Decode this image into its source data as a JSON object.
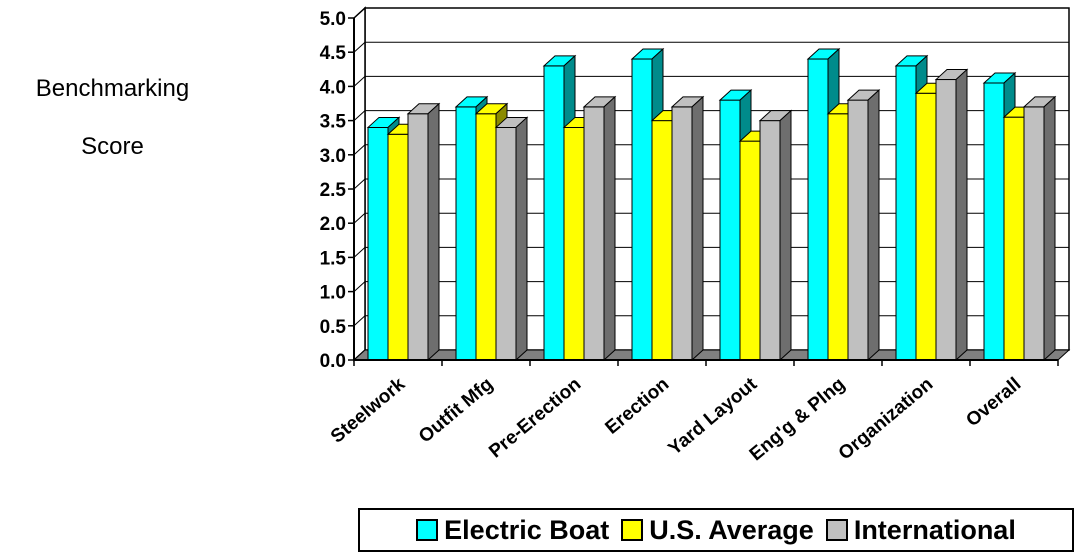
{
  "ylabel_lines": [
    "Benchmarking",
    "Score"
  ],
  "chart_data": {
    "type": "bar",
    "title": "",
    "xlabel": "",
    "ylabel": "Benchmarking Score",
    "ylim": [
      0,
      5
    ],
    "yticks": [
      "0.0",
      "0.5",
      "1.0",
      "1.5",
      "2.0",
      "2.5",
      "3.0",
      "3.5",
      "4.0",
      "4.5",
      "5.0"
    ],
    "grid": true,
    "legend_position": "bottom",
    "categories": [
      "Steelwork",
      "Outfit Mfg",
      "Pre-Erection",
      "Erection",
      "Yard Layout",
      "Eng'g & Plng",
      "Organization",
      "Overall"
    ],
    "series": [
      {
        "name": "Electric Boat",
        "color": "#00ffff",
        "side_color": "#008b8b",
        "values": [
          3.4,
          3.7,
          4.3,
          4.4,
          3.8,
          4.4,
          4.3,
          4.05
        ]
      },
      {
        "name": "U.S. Average",
        "color": "#ffff00",
        "side_color": "#8b8b00",
        "values": [
          3.3,
          3.6,
          3.4,
          3.5,
          3.2,
          3.6,
          3.9,
          3.55
        ]
      },
      {
        "name": "International",
        "color": "#c0c0c0",
        "side_color": "#6e6e6e",
        "values": [
          3.6,
          3.4,
          3.7,
          3.7,
          3.5,
          3.8,
          4.1,
          3.7
        ]
      }
    ]
  }
}
